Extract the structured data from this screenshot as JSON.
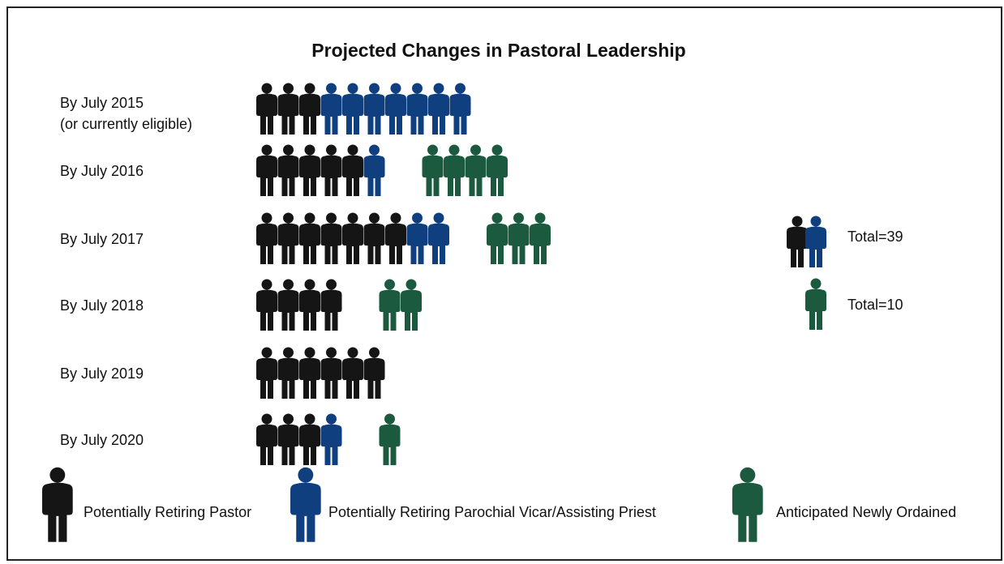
{
  "chart_data": {
    "type": "pictograph",
    "title": "Projected Changes in Pastoral Leadership",
    "categories": [
      "By July 2015\n(or currently eligible)",
      "By July 2016",
      "By July 2017",
      "By July 2018",
      "By July 2019",
      "By July 2020"
    ],
    "series": [
      {
        "name": "Potentially Retiring Pastor",
        "color": "#151515",
        "values": [
          3,
          5,
          7,
          4,
          6,
          3
        ]
      },
      {
        "name": "Potentially Retiring Parochial Vicar/Assisting Priest",
        "color": "#0f3f7e",
        "values": [
          7,
          1,
          2,
          0,
          0,
          1
        ]
      },
      {
        "name": "Anticipated Newly Ordained",
        "color": "#1c5a40",
        "values": [
          0,
          4,
          3,
          2,
          0,
          1
        ]
      }
    ],
    "totals": [
      {
        "value": 39,
        "label": "Total=39"
      },
      {
        "value": 10,
        "label": "Total=10"
      }
    ]
  }
}
